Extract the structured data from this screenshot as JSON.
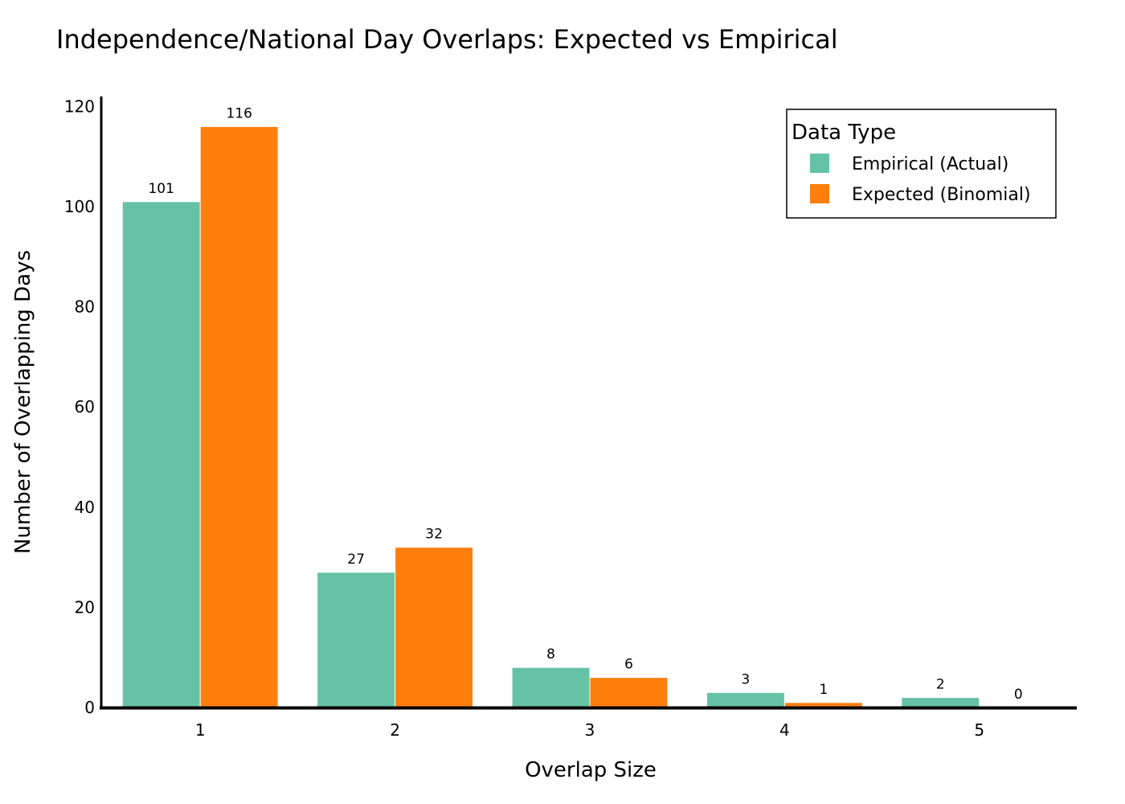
{
  "chart_data": {
    "type": "bar",
    "title": "Independence/National Day Overlaps: Expected vs Empirical",
    "xlabel": "Overlap Size",
    "ylabel": "Number of Overlapping Days",
    "categories": [
      "1",
      "2",
      "3",
      "4",
      "5"
    ],
    "series": [
      {
        "name": "Empirical (Actual)",
        "color": "#66c2a5",
        "values": [
          101,
          27,
          8,
          3,
          2
        ]
      },
      {
        "name": "Expected (Binomial)",
        "color": "#ff7f0e",
        "values": [
          116,
          32,
          6,
          1,
          0
        ]
      }
    ],
    "ylim": [
      0,
      122
    ],
    "yticks": [
      0,
      20,
      40,
      60,
      80,
      100,
      120
    ],
    "grid": false,
    "legend": {
      "title": "Data Type",
      "position": "top-right"
    }
  }
}
